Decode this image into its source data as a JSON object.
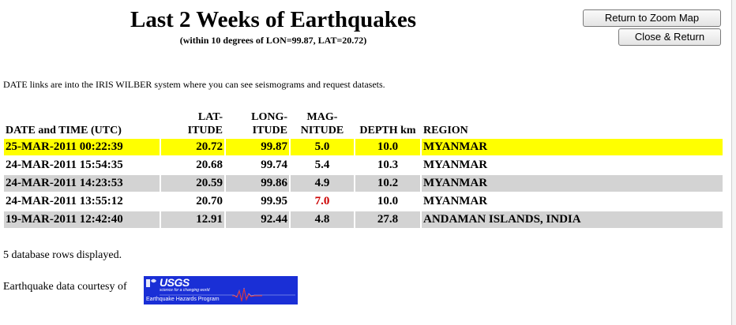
{
  "header": {
    "title": "Last 2 Weeks of Earthquakes",
    "subtitle": "(within 10 degrees of LON=99.87, LAT=20.72)"
  },
  "buttons": {
    "zoom_map": "Return to Zoom Map",
    "close_return": "Close & Return"
  },
  "intro_text": "DATE links are into the IRIS WILBER system where you can see seismograms and request datasets.",
  "table": {
    "headers": {
      "date": "DATE and TIME (UTC)",
      "lat_1": "LAT-",
      "lat_2": "ITUDE",
      "lon_1": "LONG-",
      "lon_2": "ITUDE",
      "mag_1": "MAG-",
      "mag_2": "NITUDE",
      "depth": "DEPTH km",
      "region": "REGION"
    },
    "rows": [
      {
        "datetime": "25-MAR-2011 00:22:39",
        "lat": "20.72",
        "lon": "99.87",
        "mag": "5.0",
        "depth": "10.0",
        "region": "MYANMAR"
      },
      {
        "datetime": "24-MAR-2011 15:54:35",
        "lat": "20.68",
        "lon": "99.74",
        "mag": "5.4",
        "depth": "10.3",
        "region": "MYANMAR"
      },
      {
        "datetime": "24-MAR-2011 14:23:53",
        "lat": "20.59",
        "lon": "99.86",
        "mag": "4.9",
        "depth": "10.2",
        "region": "MYANMAR"
      },
      {
        "datetime": "24-MAR-2011 13:55:12",
        "lat": "20.70",
        "lon": "99.95",
        "mag": "7.0",
        "depth": "10.0",
        "region": "MYANMAR"
      },
      {
        "datetime": "19-MAR-2011 12:42:40",
        "lat": "12.91",
        "lon": "92.44",
        "mag": "4.8",
        "depth": "27.8",
        "region": "ANDAMAN ISLANDS, INDIA"
      }
    ]
  },
  "footer": {
    "rows_displayed": "5 database rows displayed.",
    "courtesy": "Earthquake data courtesy of",
    "logo": {
      "name": "USGS",
      "tagline": "science for a changing world",
      "program": "Earthquake Hazards Program"
    }
  },
  "colors": {
    "highlight_row": "#ffff00",
    "alternate_row": "#d3d3d3",
    "strong_magnitude": "#cc0000",
    "logo_background": "#1a2fd6"
  }
}
